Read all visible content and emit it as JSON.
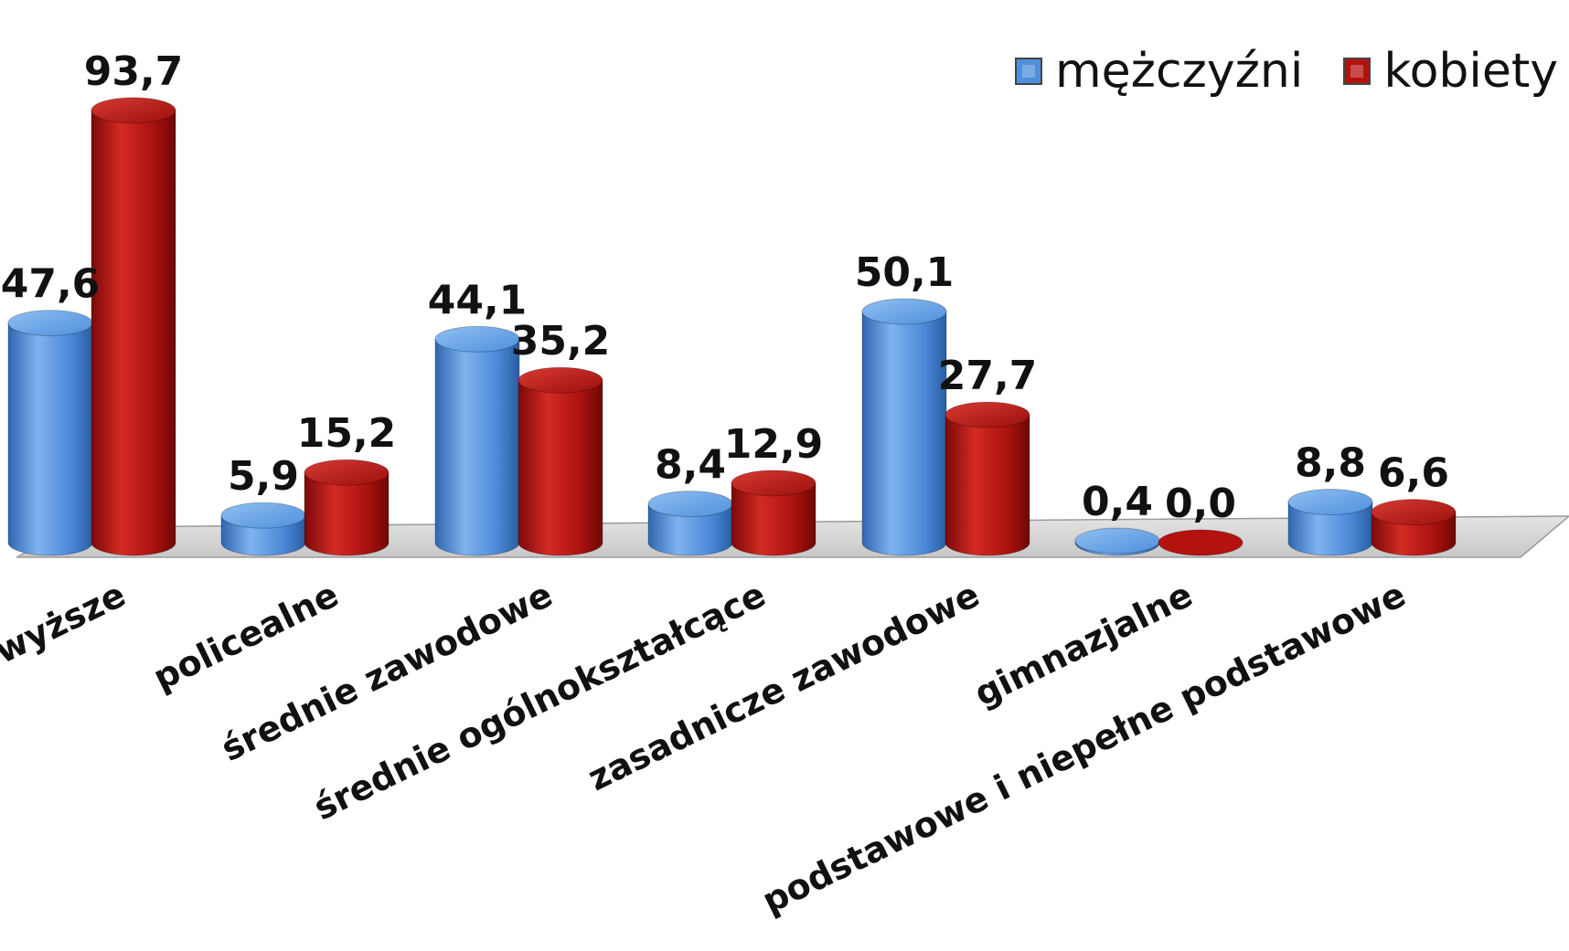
{
  "chart_data": {
    "type": "bar",
    "style": "3d-cylinder",
    "categories": [
      "wyższe",
      "policealne",
      "średnie zawodowe",
      "średnie ogólnokształcące",
      "zasadnicze zawodowe",
      "gimnazjalne",
      "podstawowe i niepełne podstawowe"
    ],
    "series": [
      {
        "name": "mężczyźni",
        "values": [
          47.6,
          5.9,
          44.1,
          8.4,
          50.1,
          0.4,
          8.8
        ],
        "labels": [
          "47,6",
          "5,9",
          "44,1",
          "8,4",
          "50,1",
          "0,4",
          "8,8"
        ],
        "color": "#4f8fdc"
      },
      {
        "name": "kobiety",
        "values": [
          93.7,
          15.2,
          35.2,
          12.9,
          27.7,
          0.0,
          6.6
        ],
        "labels": [
          "93,7",
          "15,2",
          "35,2",
          "12,9",
          "27,7",
          "0,0",
          "6,6"
        ],
        "color": "#b3120f"
      }
    ],
    "title": "",
    "xlabel": "",
    "ylabel": "",
    "ylim": [
      0,
      100
    ],
    "grid": false,
    "legend_position": "top-right",
    "category_label_rotation": "slanted"
  },
  "legend": {
    "items": [
      {
        "label": "mężczyźni",
        "color": "#4f8fdc"
      },
      {
        "label": "kobiety",
        "color": "#b3120f"
      }
    ]
  }
}
